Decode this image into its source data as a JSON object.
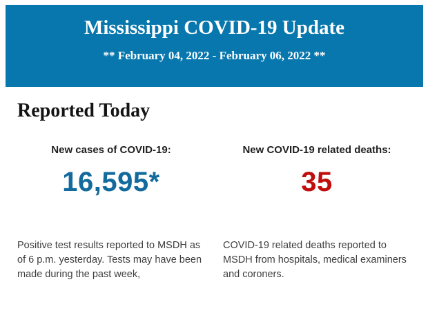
{
  "header": {
    "title": "Mississippi COVID-19 Update",
    "date_range": "** February 04, 2022 - February 06, 2022 **"
  },
  "section": {
    "heading": "Reported Today"
  },
  "stats": {
    "cases": {
      "label": "New cases of COVID-19:",
      "value": "16,595*",
      "description": "Positive test results reported to MSDH as of 6 p.m. yesterday. Tests may have been made during the past week,"
    },
    "deaths": {
      "label": "New COVID-19 related deaths:",
      "value": "35",
      "description": "COVID-19 related deaths reported to MSDH from hospitals, medical examiners and coroners."
    }
  },
  "colors": {
    "header_bg": "#0877AD",
    "cases_value": "#136A9D",
    "deaths_value": "#C00D0D"
  }
}
